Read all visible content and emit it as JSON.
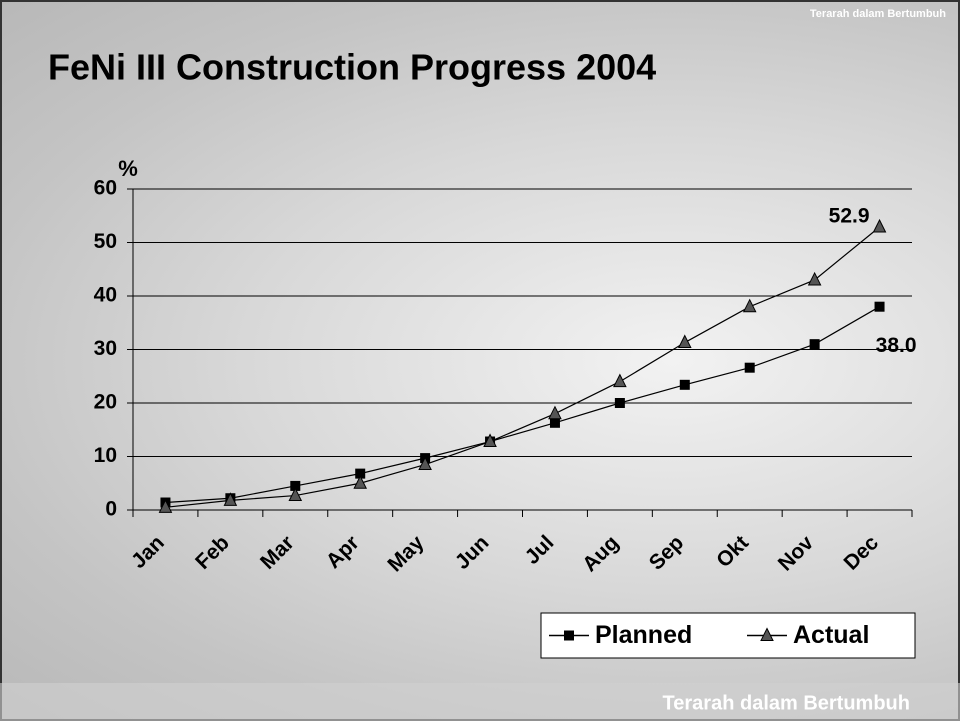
{
  "chart_data": {
    "type": "line",
    "title": "FeNi III Construction Progress 2004",
    "header_text": "Terarah dalam Bertumbuh",
    "footer_text": "Terarah dalam Bertumbuh",
    "y_label": "%",
    "categories": [
      "Jan",
      "Feb",
      "Mar",
      "Apr",
      "May",
      "Jun",
      "Jul",
      "Aug",
      "Sep",
      "Okt",
      "Nov",
      "Dec"
    ],
    "series": [
      {
        "name": "Planned",
        "color": "#000000",
        "marker": "square",
        "values": [
          1.4,
          2.2,
          4.5,
          6.8,
          9.7,
          12.8,
          16.3,
          20.0,
          23.4,
          26.6,
          31.0,
          38.0
        ],
        "value_labels": [
          null,
          null,
          null,
          null,
          null,
          null,
          null,
          null,
          null,
          null,
          null,
          "38.0"
        ]
      },
      {
        "name": "Actual",
        "color": "#000000",
        "marker": "triangle",
        "values": [
          0.5,
          1.8,
          2.7,
          5.0,
          8.5,
          12.8,
          18.0,
          24.0,
          31.3,
          38.0,
          43.0,
          52.9
        ],
        "value_labels": [
          null,
          null,
          null,
          null,
          null,
          null,
          null,
          null,
          null,
          null,
          null,
          "52.9"
        ]
      }
    ],
    "ylim": [
      0,
      60
    ],
    "yticks": [
      0,
      10,
      20,
      30,
      40,
      50,
      60
    ],
    "grid": true,
    "legend": "lower right"
  }
}
